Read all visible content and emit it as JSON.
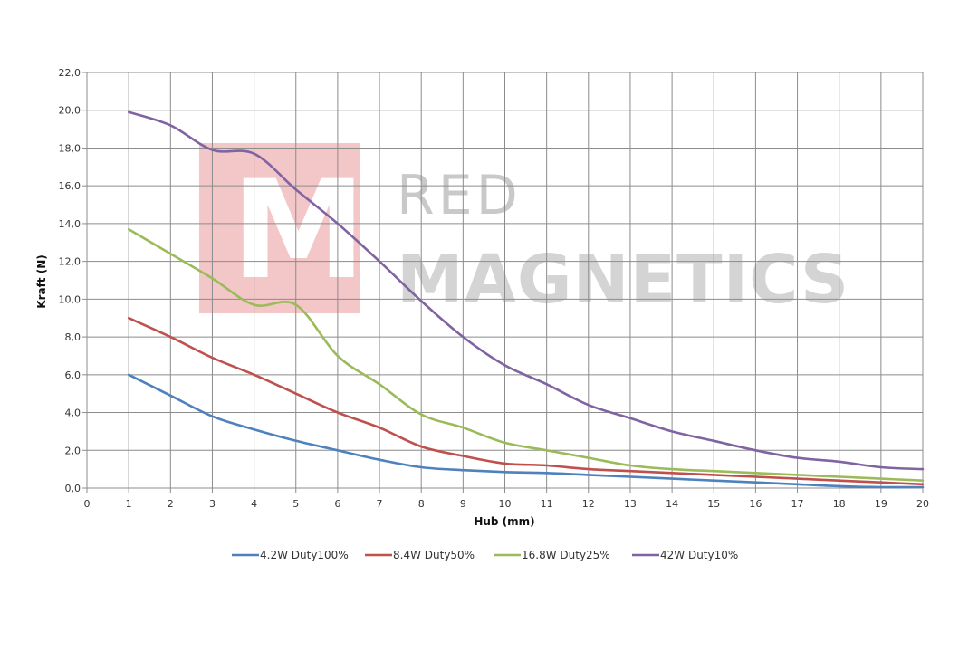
{
  "watermark": {
    "line1": "RED",
    "line2": "MAGNETICS",
    "logo_letter": "M",
    "logo_color": "#f3c6c8"
  },
  "chart_data": {
    "type": "line",
    "xlabel": "Hub (mm)",
    "ylabel": "Kraft (N)",
    "xlim": [
      0,
      20
    ],
    "ylim": [
      0,
      22
    ],
    "x_ticks": [
      "0",
      "1",
      "2",
      "3",
      "4",
      "5",
      "6",
      "7",
      "8",
      "9",
      "10",
      "11",
      "12",
      "13",
      "14",
      "15",
      "16",
      "17",
      "18",
      "19",
      "20"
    ],
    "y_ticks": [
      "0,0",
      "2,0",
      "4,0",
      "6,0",
      "8,0",
      "10,0",
      "12,0",
      "14,0",
      "16,0",
      "18,0",
      "20,0",
      "22,0"
    ],
    "grid": true,
    "legend_position": "bottom",
    "x": [
      1,
      2,
      3,
      4,
      5,
      6,
      7,
      8,
      9,
      10,
      11,
      12,
      13,
      14,
      15,
      16,
      17,
      18,
      19,
      20
    ],
    "series": [
      {
        "name": "4.2W Duty100%",
        "color": "#4f81bd",
        "values": [
          6.0,
          4.9,
          3.8,
          3.1,
          2.5,
          2.0,
          1.5,
          1.1,
          0.95,
          0.85,
          0.8,
          0.7,
          0.6,
          0.5,
          0.4,
          0.3,
          0.2,
          0.1,
          0.05,
          0.05
        ]
      },
      {
        "name": "8.4W Duty50%",
        "color": "#c0504d",
        "values": [
          9.0,
          8.0,
          6.9,
          6.0,
          5.0,
          4.0,
          3.2,
          2.2,
          1.7,
          1.3,
          1.2,
          1.0,
          0.9,
          0.8,
          0.7,
          0.6,
          0.5,
          0.4,
          0.3,
          0.2
        ]
      },
      {
        "name": "16.8W Duty25%",
        "color": "#9bbb59",
        "values": [
          13.7,
          12.4,
          11.1,
          9.7,
          9.7,
          7.0,
          5.5,
          3.9,
          3.2,
          2.4,
          2.0,
          1.6,
          1.2,
          1.0,
          0.9,
          0.8,
          0.7,
          0.6,
          0.5,
          0.4
        ]
      },
      {
        "name": "42W Duty10%",
        "color": "#8064a2",
        "values": [
          19.9,
          19.2,
          17.9,
          17.7,
          15.8,
          14.0,
          12.0,
          9.9,
          8.0,
          6.5,
          5.5,
          4.4,
          3.7,
          3.0,
          2.5,
          2.0,
          1.6,
          1.4,
          1.1,
          1.0
        ]
      }
    ]
  }
}
